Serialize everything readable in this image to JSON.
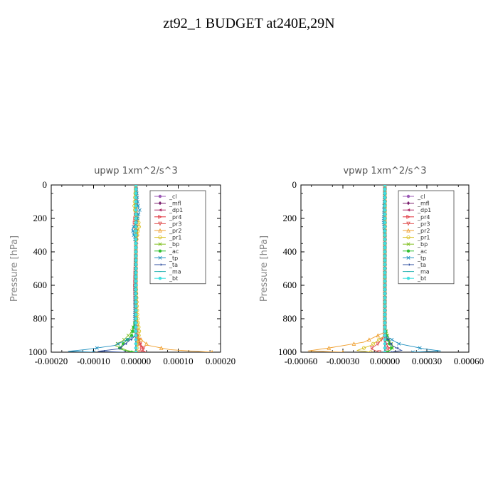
{
  "page_title": "zt92_1  BUDGET at240E,29N",
  "chart_data": [
    {
      "type": "line",
      "title": "upwp   1xm^2/s^3",
      "xlabel": "",
      "ylabel": "Pressure [hPa]",
      "xlim": [
        -0.0002,
        0.0002
      ],
      "ylim": [
        1000,
        0
      ],
      "xticks": [
        "-0.00020",
        "-0.00010",
        "0.00000",
        "0.00010",
        "0.00020"
      ],
      "yticks": [
        "0",
        "200",
        "400",
        "600",
        "800",
        "1000"
      ],
      "legend_position": "top-right",
      "series": [
        {
          "name": "_cl",
          "color": "#9b59b6",
          "marker": "circle",
          "x": [
            0,
            0,
            0,
            0,
            0,
            0
          ],
          "y": [
            0,
            200,
            400,
            600,
            800,
            1000
          ]
        },
        {
          "name": "_mfl",
          "color": "#7a1f6e",
          "marker": "diamond",
          "x": [
            0,
            0,
            0,
            0,
            0,
            0
          ],
          "y": [
            0,
            200,
            400,
            600,
            800,
            1000
          ]
        },
        {
          "name": "_dp1",
          "color": "#b0306a",
          "marker": "triangle-left",
          "x": [
            0,
            0,
            0,
            0,
            0,
            0
          ],
          "y": [
            0,
            200,
            400,
            600,
            800,
            1000
          ]
        },
        {
          "name": "_pr4",
          "color": "#e0303a",
          "marker": "triangle-right",
          "x": [
            0,
            2e-06,
            -3e-06,
            2e-06,
            0,
            -2e-06,
            0,
            5e-06,
            1e-05,
            1.5e-05,
            2e-05
          ],
          "y": [
            0,
            120,
            230,
            290,
            400,
            600,
            850,
            920,
            950,
            980,
            1000
          ]
        },
        {
          "name": "_pr3",
          "color": "#e05050",
          "marker": "triangle-down",
          "x": [
            0,
            0,
            2e-06,
            0,
            0,
            0,
            4e-06,
            1e-05,
            2e-05,
            1e-05
          ],
          "y": [
            0,
            150,
            250,
            350,
            600,
            850,
            900,
            950,
            980,
            1000
          ]
        },
        {
          "name": "_pr2",
          "color": "#f0a030",
          "marker": "triangle-up",
          "x": [
            0,
            0,
            0,
            0,
            0,
            3e-05,
            8e-05,
            0.00014,
            0.00018
          ],
          "y": [
            0,
            400,
            600,
            800,
            900,
            960,
            985,
            995,
            1000
          ]
        },
        {
          "name": "_pr1",
          "color": "#d8c020",
          "marker": "circle-open",
          "x": [
            0,
            -4e-06,
            2e-06,
            8e-06,
            4e-06,
            0,
            0,
            4e-06,
            8e-06,
            4e-06,
            2e-06
          ],
          "y": [
            0,
            140,
            180,
            240,
            290,
            350,
            600,
            800,
            880,
            950,
            1000
          ]
        },
        {
          "name": "_bp",
          "color": "#7fbf20",
          "marker": "x",
          "x": [
            0,
            0,
            0,
            -1e-05,
            -3e-05,
            -5e-05,
            -2e-05,
            0
          ],
          "y": [
            0,
            400,
            800,
            880,
            930,
            960,
            990,
            1000
          ]
        },
        {
          "name": "_ac",
          "color": "#30c030",
          "marker": "circle",
          "x": [
            0,
            0,
            0,
            -1e-05,
            -3e-05,
            -4e-05,
            -1e-05
          ],
          "y": [
            0,
            400,
            800,
            900,
            950,
            980,
            1000
          ]
        },
        {
          "name": "_tp",
          "color": "#2090c0",
          "marker": "x",
          "x": [
            0,
            6e-06,
            9e-06,
            2e-06,
            -8e-06,
            -6e-06,
            0,
            -3e-06,
            0,
            -5e-05,
            -0.00012,
            -0.00016,
            -0.0001
          ],
          "y": [
            0,
            140,
            150,
            220,
            260,
            290,
            350,
            800,
            900,
            960,
            985,
            995,
            1000
          ]
        },
        {
          "name": "_ta",
          "color": "#3050a0",
          "marker": "arrow",
          "x": [
            0,
            0,
            0,
            -4e-05,
            -9e-05,
            -3e-05
          ],
          "y": [
            0,
            600,
            900,
            980,
            995,
            1000
          ]
        },
        {
          "name": "_ma",
          "color": "#20b0b0",
          "marker": "dash",
          "x": [
            0,
            0,
            0
          ],
          "y": [
            0,
            500,
            1000
          ]
        },
        {
          "name": "_bt",
          "color": "#40e0e0",
          "marker": "circle",
          "x": [
            0,
            0,
            0
          ],
          "y": [
            0,
            500,
            1000
          ]
        }
      ]
    },
    {
      "type": "line",
      "title": "vpwp   1xm^2/s^3",
      "xlabel": "",
      "ylabel": "Pressure [hPa]",
      "xlim": [
        -0.0006,
        0.0006
      ],
      "ylim": [
        1000,
        0
      ],
      "xticks": [
        "-0.00060",
        "-0.00030",
        "0.00000",
        "0.00030",
        "0.00060"
      ],
      "yticks": [
        "0",
        "200",
        "400",
        "600",
        "800",
        "1000"
      ],
      "legend_position": "top-right",
      "series": [
        {
          "name": "_cl",
          "color": "#9b59b6",
          "marker": "circle",
          "x": [
            0,
            0,
            0,
            0,
            0,
            0
          ],
          "y": [
            0,
            200,
            400,
            600,
            800,
            1000
          ]
        },
        {
          "name": "_mfl",
          "color": "#7a1f6e",
          "marker": "diamond",
          "x": [
            0,
            0,
            0,
            0,
            0,
            0
          ],
          "y": [
            0,
            200,
            400,
            600,
            800,
            1000
          ]
        },
        {
          "name": "_dp1",
          "color": "#b0306a",
          "marker": "triangle-left",
          "x": [
            0,
            0,
            0,
            0,
            0,
            0
          ],
          "y": [
            0,
            200,
            400,
            600,
            800,
            1000
          ]
        },
        {
          "name": "_pr4",
          "color": "#e0303a",
          "marker": "triangle-right",
          "x": [
            0,
            0,
            0,
            1e-05,
            3e-05,
            2e-05
          ],
          "y": [
            0,
            400,
            900,
            950,
            980,
            1000
          ]
        },
        {
          "name": "_pr3",
          "color": "#e05050",
          "marker": "triangle-down",
          "x": [
            0,
            0,
            0,
            -5e-05,
            -0.0001,
            -4e-05
          ],
          "y": [
            0,
            400,
            900,
            950,
            980,
            1000
          ]
        },
        {
          "name": "_pr2",
          "color": "#f0a030",
          "marker": "triangle-up",
          "x": [
            0,
            0,
            0,
            -0.00015,
            -0.0004,
            -0.00055,
            -0.0003
          ],
          "y": [
            0,
            400,
            880,
            940,
            975,
            993,
            1000
          ]
        },
        {
          "name": "_pr1",
          "color": "#d8c020",
          "marker": "circle-open",
          "x": [
            0,
            0,
            0,
            -0.0001,
            -0.0002,
            -0.0001
          ],
          "y": [
            0,
            400,
            900,
            960,
            990,
            1000
          ]
        },
        {
          "name": "_bp",
          "color": "#7fbf20",
          "marker": "x",
          "x": [
            0,
            0,
            0,
            3e-05,
            6e-05,
            2e-05
          ],
          "y": [
            0,
            400,
            850,
            930,
            970,
            1000
          ]
        },
        {
          "name": "_ac",
          "color": "#30c030",
          "marker": "circle",
          "x": [
            0,
            0,
            0,
            2e-05,
            5e-05,
            2e-05
          ],
          "y": [
            0,
            400,
            850,
            930,
            980,
            1000
          ]
        },
        {
          "name": "_tp",
          "color": "#2090c0",
          "marker": "x",
          "x": [
            0,
            -8e-06,
            -1e-05,
            -6e-06,
            0,
            0,
            0.0001,
            0.00028,
            0.0004,
            0.0002
          ],
          "y": [
            0,
            170,
            230,
            260,
            300,
            900,
            950,
            980,
            993,
            1000
          ]
        },
        {
          "name": "_ta",
          "color": "#3050a0",
          "marker": "arrow",
          "x": [
            0,
            0,
            0,
            5e-05,
            0.00012,
            4e-05
          ],
          "y": [
            0,
            600,
            900,
            960,
            990,
            1000
          ]
        },
        {
          "name": "_ma",
          "color": "#20b0b0",
          "marker": "dash",
          "x": [
            0,
            0,
            0
          ],
          "y": [
            0,
            500,
            1000
          ]
        },
        {
          "name": "_bt",
          "color": "#40e0e0",
          "marker": "circle",
          "x": [
            0,
            0,
            0
          ],
          "y": [
            0,
            500,
            1000
          ]
        }
      ]
    }
  ]
}
